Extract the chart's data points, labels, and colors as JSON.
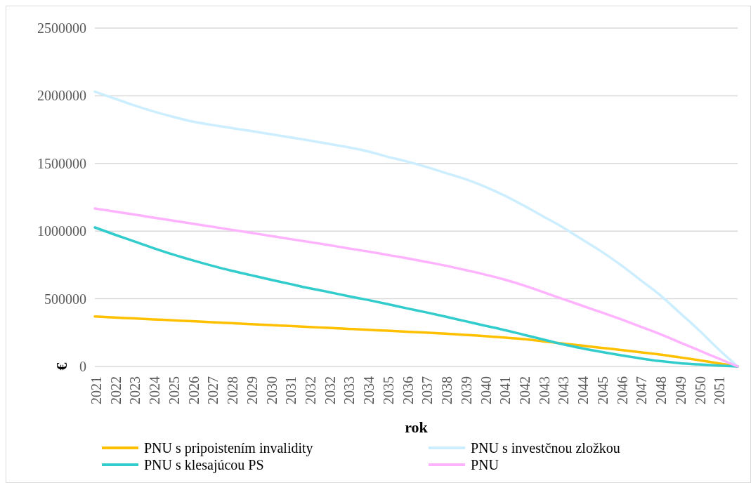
{
  "chart_data": {
    "type": "line",
    "xlabel": "rok",
    "ylabel": "€",
    "categories": [
      "2021",
      "2022",
      "2023",
      "2024",
      "2025",
      "2026",
      "2027",
      "2028",
      "2029",
      "2030",
      "2031",
      "2032",
      "2032",
      "2033",
      "2034",
      "2035",
      "2036",
      "2037",
      "2038",
      "2039",
      "2040",
      "2041",
      "2042",
      "2043",
      "2043",
      "2044",
      "2045",
      "2046",
      "2047",
      "2048",
      "2049",
      "2050",
      "2051",
      null
    ],
    "ylim": [
      0,
      2500000
    ],
    "yticks": [
      0,
      500000,
      1000000,
      1500000,
      2000000,
      2500000
    ],
    "grid": "y",
    "legend": "bottom",
    "marker": "none",
    "line_style": "solid",
    "series": [
      {
        "name": "PNU s pripoistením invalidity",
        "color": "#ffc000",
        "values": [
          369000,
          362000,
          355000,
          348000,
          341000,
          334000,
          327000,
          320000,
          313000,
          306000,
          299000,
          292000,
          285000,
          278000,
          271000,
          264000,
          257000,
          250000,
          242000,
          234000,
          224000,
          214000,
          202000,
          186000,
          170000,
          154000,
          138000,
          122000,
          105000,
          88000,
          68000,
          47000,
          24000,
          0
        ]
      },
      {
        "name": "PNU s investčnou zložkou",
        "color": "#cceeff",
        "values": [
          2030000,
          1980000,
          1930000,
          1885000,
          1845000,
          1810000,
          1785000,
          1762000,
          1740000,
          1717000,
          1693000,
          1670000,
          1645000,
          1620000,
          1590000,
          1550000,
          1515000,
          1475000,
          1430000,
          1385000,
          1330000,
          1265000,
          1190000,
          1110000,
          1030000,
          940000,
          850000,
          750000,
          640000,
          530000,
          400000,
          270000,
          130000,
          0
        ]
      },
      {
        "name": "PNU s klesajúcou PS",
        "color": "#33cccc",
        "values": [
          1027000,
          975000,
          925000,
          875000,
          828000,
          785000,
          745000,
          708000,
          675000,
          642000,
          610000,
          578000,
          550000,
          520000,
          492000,
          462000,
          430000,
          400000,
          368000,
          335000,
          302000,
          270000,
          235000,
          200000,
          165000,
          135000,
          108000,
          83000,
          60000,
          40000,
          25000,
          15000,
          7000,
          0
        ]
      },
      {
        "name": "PNU",
        "color": "#ffb3ff",
        "values": [
          1167000,
          1145000,
          1123000,
          1100000,
          1078000,
          1055000,
          1033000,
          1010000,
          988000,
          965000,
          942000,
          920000,
          897000,
          873000,
          850000,
          825000,
          800000,
          773000,
          745000,
          713000,
          680000,
          643000,
          600000,
          550000,
          500000,
          450000,
          400000,
          350000,
          295000,
          240000,
          180000,
          120000,
          60000,
          0
        ]
      }
    ]
  }
}
